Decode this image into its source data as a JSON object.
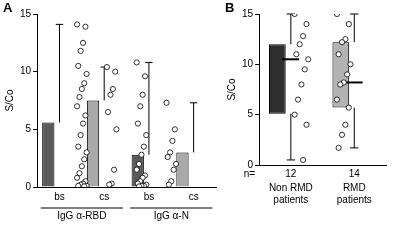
{
  "chart_data": [
    {
      "type": "bar",
      "title": "A",
      "y_label": "S/Co",
      "categories": [
        "bs",
        "cs",
        "bs",
        "cs"
      ],
      "groups": [
        "IgG α-RBD",
        "IgG α-N"
      ],
      "values": [
        5.6,
        7.5,
        2.8,
        3.0
      ],
      "whisker_high": [
        14.1,
        10.4,
        10.8,
        7.3
      ],
      "colors": [
        "#5a5a5a",
        "#a9a9a9",
        "#5a5a5a",
        "#a9a9a9"
      ],
      "points": [
        [
          14.1,
          13.9,
          12.5,
          11.8,
          10.5,
          9.8,
          9.0,
          8.5,
          7.8,
          7.0,
          6.2,
          5.5,
          4.5,
          3.5,
          3.0,
          2.4,
          1.8,
          1.2,
          0.8,
          0.5,
          0.3,
          0.2,
          0.1,
          0.1,
          0.05
        ],
        [
          10.4,
          10.0,
          8.5,
          8.0,
          6.5,
          5.0,
          1.5,
          0.3,
          0.2
        ],
        [
          10.8,
          9.6,
          8.0,
          7.0,
          5.5,
          4.5,
          3.5,
          2.8,
          2.0,
          1.5,
          1.0,
          0.8,
          0.5,
          0.3,
          0.2,
          0.1,
          0.1,
          0.05
        ],
        [
          7.3,
          5.0,
          4.0,
          3.0,
          2.6,
          2.0,
          1.5,
          0.5,
          0.2
        ]
      ],
      "ylim": [
        0,
        15
      ],
      "yticks": [
        0,
        5,
        10,
        15
      ],
      "grid": false
    },
    {
      "type": "box",
      "title": "B",
      "y_label": "S/Co",
      "categories": [
        "Non RMD patients",
        "RMD patients"
      ],
      "n_label": "n=",
      "n": [
        12,
        14
      ],
      "min": [
        0.5,
        1.7
      ],
      "q1": [
        5.1,
        5.7
      ],
      "median": [
        10.5,
        8.2
      ],
      "q3": [
        12.0,
        12.2
      ],
      "max": [
        15.0,
        15.0
      ],
      "colors": [
        "#2e2e2e",
        "#b3b3b3"
      ],
      "points": [
        [
          15.0,
          14.0,
          12.8,
          12.0,
          11.0,
          10.5,
          9.5,
          8.0,
          6.5,
          5.0,
          4.0,
          0.5
        ],
        [
          15.0,
          14.0,
          12.5,
          12.2,
          11.0,
          10.0,
          9.0,
          8.2,
          8.0,
          6.5,
          5.7,
          4.0,
          3.0,
          1.7
        ]
      ],
      "ylim": [
        0,
        15
      ],
      "yticks": [
        0,
        5,
        10,
        15
      ],
      "grid": false
    }
  ]
}
